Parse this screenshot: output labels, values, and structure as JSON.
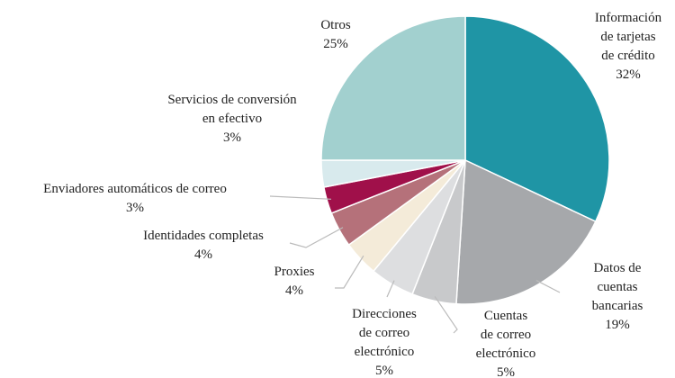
{
  "chart_data": {
    "type": "pie",
    "categories": [
      "Información\nde tarjetas\nde crédito",
      "Datos de\ncuentas\nbancarias",
      "Cuentas\nde correo\nelectrónico",
      "Direcciones\nde correo\nelectrónico",
      "Proxies",
      "Identidades completas",
      "Enviadores automáticos de correo",
      "Servicios de conversión\nen efectivo",
      "Otros"
    ],
    "values": [
      32,
      19,
      5,
      5,
      4,
      4,
      3,
      3,
      25
    ],
    "value_labels": [
      "32%",
      "19%",
      "5%",
      "5%",
      "4%",
      "4%",
      "3%",
      "3%",
      "25%"
    ],
    "colors": [
      "#1f95a5",
      "#a6a8ab",
      "#c8c9cb",
      "#dddee0",
      "#f4ebd9",
      "#b5717a",
      "#a0104a",
      "#d8eaed",
      "#a2d0cf"
    ]
  }
}
